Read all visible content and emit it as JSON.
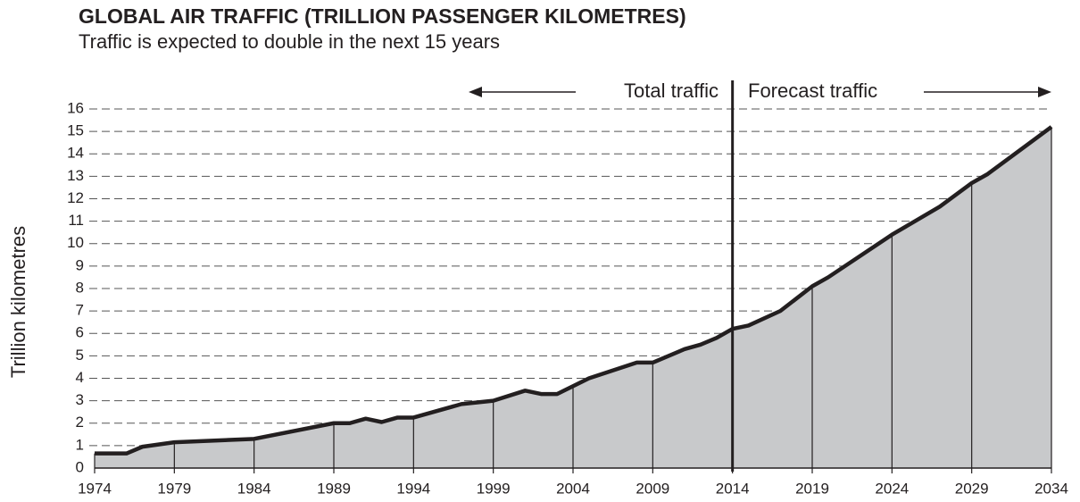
{
  "chart_data": {
    "type": "area",
    "title": "GLOBAL AIR TRAFFIC (TRILLION PASSENGER KILOMETRES)",
    "subtitle": "Traffic is expected to double in the next 15 years",
    "ylabel": "Trillion kilometres",
    "annotations": {
      "left": "Total traffic",
      "right": "Forecast traffic"
    },
    "forecast_start": 2014,
    "x": [
      1974,
      1976,
      1977,
      1979,
      1984,
      1989,
      1990,
      1991,
      1992,
      1993,
      1994,
      1997,
      1999,
      2001,
      2002,
      2003,
      2005,
      2008,
      2009,
      2011,
      2012,
      2013,
      2014,
      2015,
      2017,
      2019,
      2020,
      2024,
      2027,
      2029,
      2030,
      2034
    ],
    "values": [
      0.65,
      0.65,
      0.95,
      1.15,
      1.3,
      2.0,
      2.0,
      2.2,
      2.05,
      2.25,
      2.25,
      2.85,
      3.0,
      3.45,
      3.3,
      3.3,
      4.0,
      4.7,
      4.7,
      5.3,
      5.5,
      5.8,
      6.2,
      6.35,
      7.0,
      8.1,
      8.5,
      10.4,
      11.65,
      12.7,
      13.1,
      15.2
    ],
    "color": "#c8c9cb",
    "line_color": "#231f20",
    "xlim": [
      1974,
      2034
    ],
    "xticks": [
      1974,
      1979,
      1984,
      1989,
      1994,
      1999,
      2004,
      2009,
      2014,
      2019,
      2024,
      2029,
      2034
    ],
    "ylim": [
      0,
      16
    ],
    "yticks": [
      0,
      1,
      2,
      3,
      4,
      5,
      6,
      7,
      8,
      9,
      10,
      11,
      12,
      13,
      14,
      15,
      16
    ],
    "grid": true
  }
}
